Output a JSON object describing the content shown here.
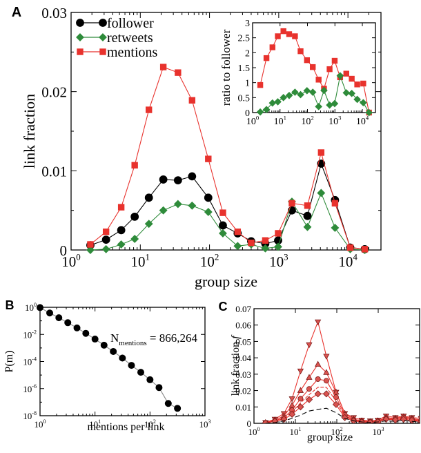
{
  "figure": {
    "colors": {
      "follower": "#000000",
      "retweets": "#2e8b3a",
      "mentions": "#e8322d",
      "dashed": "#000000"
    }
  },
  "chart_data": [
    {
      "panel": "A",
      "type": "line",
      "xscale": "log",
      "xlabel": "group size",
      "ylabel": "link fraction",
      "xlim": [
        1,
        30000
      ],
      "ylim": [
        0,
        0.03
      ],
      "yticks": [
        "0",
        "0.01",
        "0.02",
        "0.03"
      ],
      "xticks": [
        "10",
        "10",
        "10",
        "10",
        "10"
      ],
      "xtick_exponents": [
        "0",
        "1",
        "2",
        "3",
        "4"
      ],
      "legend": {
        "placement": "top-left",
        "entries": [
          "follower",
          "retweets",
          "mentions"
        ]
      },
      "series": [
        {
          "name": "follower",
          "marker": "circle",
          "x": [
            1.9,
            3.2,
            5.3,
            8.3,
            13.3,
            21.5,
            35,
            56,
            96,
            156,
            255,
            400,
            640,
            980,
            1550,
            2600,
            4100,
            6500,
            10800,
            17500
          ],
          "y": [
            0.0006,
            0.0013,
            0.0025,
            0.0042,
            0.0066,
            0.0089,
            0.0088,
            0.0093,
            0.0066,
            0.0031,
            0.0021,
            0.0011,
            0.0008,
            0.0012,
            0.005,
            0.0043,
            0.0109,
            0.0063,
            0.0003,
            0.0001
          ]
        },
        {
          "name": "retweets",
          "marker": "diamond",
          "x": [
            1.9,
            3.2,
            5.3,
            8.3,
            13.3,
            21.5,
            35,
            56,
            96,
            156,
            255,
            400,
            640,
            980,
            1550,
            2600,
            4100,
            6500,
            10800,
            17500
          ],
          "y": [
            0.0,
            0.0001,
            0.0007,
            0.0014,
            0.0033,
            0.005,
            0.0058,
            0.0056,
            0.0048,
            0.0021,
            0.0005,
            0.0007,
            0.0002,
            0.0004,
            0.0061,
            0.0029,
            0.0072,
            0.0028,
            0.0001,
            0.0
          ]
        },
        {
          "name": "mentions",
          "marker": "square",
          "x": [
            1.9,
            3.2,
            5.3,
            8.3,
            13.3,
            21.5,
            35,
            56,
            96,
            156,
            255,
            400,
            640,
            980,
            1550,
            2600,
            4100,
            6500,
            10800,
            17500
          ],
          "y": [
            0.0007,
            0.0023,
            0.0054,
            0.0107,
            0.0177,
            0.0231,
            0.0224,
            0.0189,
            0.0115,
            0.0047,
            0.0023,
            0.0009,
            0.0012,
            0.0021,
            0.0059,
            0.0056,
            0.0123,
            0.0059,
            0.0003,
            0.0001
          ]
        }
      ],
      "inset": {
        "type": "line",
        "xscale": "log",
        "ylabel": "ratio to follower",
        "xlim": [
          1,
          30000
        ],
        "ylim": [
          0,
          3
        ],
        "yticks": [
          "0",
          "0.5",
          "1",
          "1.5",
          "2",
          "2.5",
          "3"
        ],
        "xticks": [
          "10",
          "10",
          "10",
          "10",
          "10"
        ],
        "xtick_exponents": [
          "0",
          "1",
          "2",
          "3",
          "4"
        ],
        "series": [
          {
            "name": "mentions",
            "marker": "square",
            "x": [
              1.9,
              3.2,
              5.3,
              8.3,
              13.3,
              21.5,
              35,
              56,
              96,
              156,
              255,
              400,
              640,
              980,
              1550,
              2600,
              4100,
              6500,
              10800,
              17500
            ],
            "y": [
              0.92,
              1.82,
              2.18,
              2.55,
              2.72,
              2.62,
              2.55,
              2.05,
              1.75,
              1.52,
              1.1,
              0.8,
              1.45,
              1.73,
              1.18,
              1.3,
              1.13,
              0.94,
              0.97,
              0.0
            ]
          },
          {
            "name": "retweets",
            "marker": "diamond",
            "x": [
              1.9,
              3.2,
              5.3,
              8.3,
              13.3,
              21.5,
              35,
              56,
              96,
              156,
              255,
              400,
              640,
              980,
              1550,
              2600,
              4100,
              6500,
              10800,
              17500
            ],
            "y": [
              0.02,
              0.1,
              0.32,
              0.36,
              0.5,
              0.57,
              0.68,
              0.6,
              0.73,
              0.68,
              0.2,
              0.74,
              0.25,
              0.3,
              1.23,
              0.66,
              0.64,
              0.44,
              0.33,
              0.0
            ]
          }
        ]
      }
    },
    {
      "panel": "B",
      "type": "scatter",
      "xscale": "log",
      "yscale": "log",
      "xlabel": "mentions per link",
      "ylabel": "P(m)",
      "annotation": {
        "text": "N",
        "sub": "mentions",
        "value": "= 866,264"
      },
      "xlim": [
        1,
        1000
      ],
      "ylim": [
        1e-08,
        1
      ],
      "xticks": [
        "10",
        "10",
        "10",
        "10"
      ],
      "xtick_exponents": [
        "0",
        "1",
        "2",
        "3"
      ],
      "yticks": [
        "10",
        "10",
        "10",
        "10",
        "10"
      ],
      "ytick_exponents": [
        "-8",
        "-6",
        "-4",
        "-2",
        "0"
      ],
      "x": [
        1,
        1.5,
        2.2,
        3.2,
        4.7,
        6.8,
        10,
        14.6,
        21.5,
        31.5,
        46,
        68,
        100,
        146,
        215,
        316
      ],
      "y": [
        0.95,
        0.38,
        0.17,
        0.073,
        0.03,
        0.012,
        0.0045,
        0.0016,
        0.00055,
        0.00018,
        5.2e-05,
        1.6e-05,
        4.5e-06,
        1.2e-06,
        8e-08,
        3.5e-08
      ]
    },
    {
      "panel": "C",
      "type": "line",
      "xscale": "log",
      "xlabel": "group size",
      "ylabel": "link fraction",
      "ylabel_symbol": "f",
      "xlim": [
        1,
        10000
      ],
      "ylim": [
        0,
        0.07
      ],
      "yticks": [
        "0",
        "0.01",
        "0.02",
        "0.03",
        "0.04",
        "0.05",
        "0.06",
        "0.07"
      ],
      "xticks": [
        "10",
        "10",
        "10",
        "10"
      ],
      "xtick_exponents": [
        "0",
        "1",
        "2",
        "3"
      ],
      "x": [
        1.9,
        3.2,
        5.3,
        8.3,
        13.3,
        21.5,
        35,
        56,
        96,
        156,
        255,
        400,
        640,
        980,
        1550,
        2600,
        4100,
        6500,
        10800
      ],
      "series": [
        {
          "marker": "triangle-down",
          "y": [
            0.0005,
            0.0025,
            0.006,
            0.015,
            0.032,
            0.048,
            0.062,
            0.041,
            0.019,
            0.006,
            0.0035,
            0.002,
            0.0015,
            0.002,
            0.0045,
            0.0035,
            0.0045,
            0.0035,
            0.003
          ]
        },
        {
          "marker": "triangle-up",
          "y": [
            0.0004,
            0.002,
            0.0045,
            0.011,
            0.02,
            0.028,
            0.036,
            0.031,
            0.019,
            0.006,
            0.0025,
            0.0015,
            0.001,
            0.0015,
            0.0035,
            0.003,
            0.004,
            0.003,
            0.002
          ]
        },
        {
          "marker": "circle",
          "y": [
            0.0003,
            0.0015,
            0.0035,
            0.008,
            0.015,
            0.021,
            0.027,
            0.026,
            0.016,
            0.005,
            0.002,
            0.001,
            0.001,
            0.001,
            0.003,
            0.0025,
            0.0035,
            0.0025,
            0.0015
          ]
        },
        {
          "marker": "none",
          "y": [
            0.0003,
            0.0014,
            0.003,
            0.0068,
            0.0125,
            0.0175,
            0.022,
            0.022,
            0.0135,
            0.0045,
            0.0018,
            0.001,
            0.0008,
            0.001,
            0.0028,
            0.0022,
            0.003,
            0.0022,
            0.0012
          ]
        },
        {
          "marker": "diamond",
          "y": [
            0.0002,
            0.0012,
            0.0025,
            0.0055,
            0.01,
            0.0145,
            0.018,
            0.018,
            0.0115,
            0.0035,
            0.0015,
            0.0008,
            0.0006,
            0.0009,
            0.0025,
            0.002,
            0.0025,
            0.0018,
            0.001
          ]
        },
        {
          "marker": "dashed",
          "y": [
            0.0,
            0.0005,
            0.0015,
            0.003,
            0.005,
            0.0075,
            0.0085,
            0.0092,
            0.0065,
            0.003,
            0.0015,
            0.0008,
            0.0006,
            0.0008,
            0.0015,
            0.0012,
            0.0018,
            0.0012,
            0.0006
          ]
        }
      ]
    }
  ]
}
